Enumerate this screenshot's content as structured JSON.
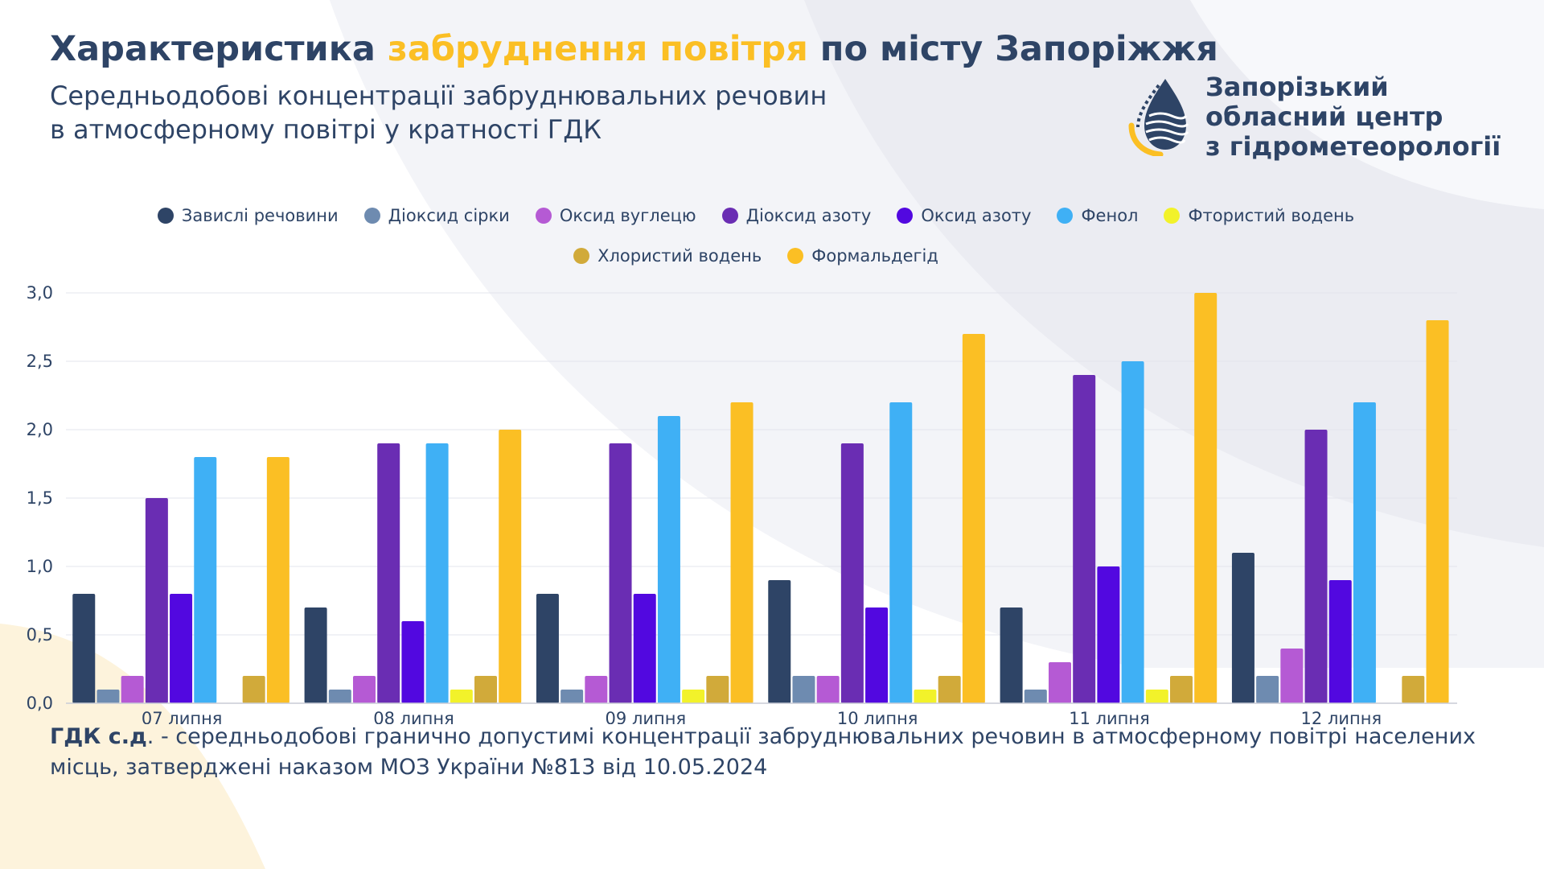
{
  "header": {
    "title_part1": "Характеристика ",
    "title_highlight": "забруднення повітря",
    "title_part2": " по місту Запоріжжя",
    "subtitle_line1": "Середньодобові концентрації забруднювальних речовин",
    "subtitle_line2": "в атмосферному повітрі у кратності ГДК"
  },
  "logo": {
    "line1": "Запорізький",
    "line2": "обласний центр",
    "line3": "з гідрометеорології"
  },
  "footnote": {
    "term": "ГДК с.д",
    "text": ". - середньодобові гранично допустимі концентрації забруднювальних речовин в атмосферному повітрі населених місць, затверджені наказом МОЗ України №813 від 10.05.2024"
  },
  "colors": {
    "title": "#2e4466",
    "highlight": "#fbbf24",
    "background_arcs": "#ebecf2",
    "background_arc_yellow": "#fdf3dc"
  },
  "chart_data": {
    "type": "bar",
    "categories": [
      "07 липня",
      "08 липня",
      "09 липня",
      "10 липня",
      "11 липня",
      "12 липня"
    ],
    "ylim": [
      0,
      3.0
    ],
    "yticks": [
      "0,0",
      "0,5",
      "1,0",
      "1,5",
      "2,0",
      "2,5",
      "3,0"
    ],
    "grid": true,
    "legend_position": "top",
    "series": [
      {
        "name": "Завислі речовини",
        "color": "#2e4466",
        "values": [
          0.8,
          0.7,
          0.8,
          0.9,
          0.7,
          1.1
        ]
      },
      {
        "name": "Діоксид сірки",
        "color": "#6e8bb0",
        "values": [
          0.1,
          0.1,
          0.1,
          0.2,
          0.1,
          0.2
        ]
      },
      {
        "name": "Оксид вуглецю",
        "color": "#b55ad4",
        "values": [
          0.2,
          0.2,
          0.2,
          0.2,
          0.3,
          0.4
        ]
      },
      {
        "name": "Діоксид азоту",
        "color": "#6a2db3",
        "values": [
          1.5,
          1.9,
          1.9,
          1.9,
          2.4,
          2.0
        ]
      },
      {
        "name": "Оксид азоту",
        "color": "#5208e0",
        "values": [
          0.8,
          0.6,
          0.8,
          0.7,
          1.0,
          0.9
        ]
      },
      {
        "name": "Фенол",
        "color": "#3fb0f5",
        "values": [
          1.8,
          1.9,
          2.1,
          2.2,
          2.5,
          2.2
        ]
      },
      {
        "name": "Фтористий водень",
        "color": "#f2f22a",
        "values": [
          0.0,
          0.1,
          0.1,
          0.1,
          0.1,
          0.0
        ]
      },
      {
        "name": "Хлористий водень",
        "color": "#d1aa3a",
        "values": [
          0.2,
          0.2,
          0.2,
          0.2,
          0.2,
          0.2
        ]
      },
      {
        "name": "Формальдегід",
        "color": "#fbbf24",
        "values": [
          1.8,
          2.0,
          2.2,
          2.7,
          3.0,
          2.8
        ]
      }
    ]
  }
}
